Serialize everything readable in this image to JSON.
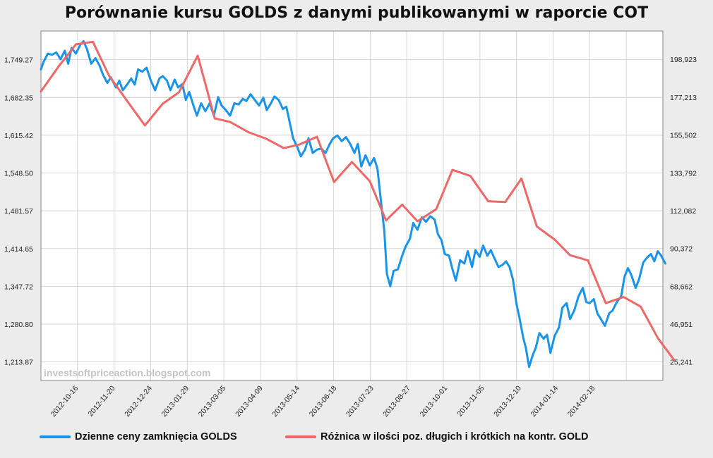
{
  "chart_data": {
    "type": "line",
    "title": "Porównanie kursu GOLDS z danymi publikowanymi w raporcie COT",
    "watermark": "investsoftpriceaction.blogspot.com",
    "x_labels": [
      "2012-10-16",
      "2012-11-20",
      "2012-12-24",
      "2013-01-29",
      "2013-03-05",
      "2013-04-09",
      "2013-05-14",
      "2013-06-18",
      "2013-07-23",
      "2013-08-27",
      "2013-10-01",
      "2013-11-05",
      "2013-12-10",
      "2014-01-14",
      "2014-02-18"
    ],
    "x_range": [
      0,
      73
    ],
    "y_left": {
      "ticks": [
        "1,213.87",
        "1,280.80",
        "1,347.72",
        "1,414.65",
        "1,481.57",
        "1,548.50",
        "1,615.42",
        "1,682.35",
        "1,749.27"
      ],
      "range": [
        1181,
        1800
      ]
    },
    "y_right": {
      "ticks": [
        "25,241",
        "46,951",
        "68,662",
        "90,372",
        "112,082",
        "133,792",
        "155,502",
        "177,213",
        "198,923"
      ],
      "range": [
        14600,
        215200
      ]
    },
    "grid": true,
    "series": [
      {
        "name": "Dzienne ceny zamknięcia GOLDS",
        "axis": "left",
        "color": "#1a94e8",
        "points": [
          [
            0,
            1732
          ],
          [
            0.3,
            1745
          ],
          [
            0.8,
            1760
          ],
          [
            1.3,
            1758
          ],
          [
            1.8,
            1762
          ],
          [
            2.3,
            1750
          ],
          [
            2.8,
            1765
          ],
          [
            3.2,
            1742
          ],
          [
            3.6,
            1770
          ],
          [
            4.1,
            1760
          ],
          [
            4.6,
            1775
          ],
          [
            5.0,
            1782
          ],
          [
            5.4,
            1768
          ],
          [
            5.9,
            1742
          ],
          [
            6.4,
            1752
          ],
          [
            6.9,
            1738
          ],
          [
            7.3,
            1722
          ],
          [
            7.8,
            1708
          ],
          [
            8.2,
            1718
          ],
          [
            8.8,
            1700
          ],
          [
            9.2,
            1712
          ],
          [
            9.6,
            1695
          ],
          [
            10.1,
            1705
          ],
          [
            10.6,
            1716
          ],
          [
            11.0,
            1705
          ],
          [
            11.4,
            1732
          ],
          [
            11.9,
            1728
          ],
          [
            12.4,
            1735
          ],
          [
            12.9,
            1712
          ],
          [
            13.4,
            1695
          ],
          [
            13.9,
            1716
          ],
          [
            14.3,
            1720
          ],
          [
            14.8,
            1712
          ],
          [
            15.2,
            1695
          ],
          [
            15.7,
            1714
          ],
          [
            16.1,
            1700
          ],
          [
            16.6,
            1706
          ],
          [
            17.0,
            1678
          ],
          [
            17.4,
            1692
          ],
          [
            17.9,
            1668
          ],
          [
            18.3,
            1650
          ],
          [
            18.8,
            1672
          ],
          [
            19.3,
            1658
          ],
          [
            19.8,
            1672
          ],
          [
            20.3,
            1650
          ],
          [
            20.8,
            1683
          ],
          [
            21.2,
            1668
          ],
          [
            21.7,
            1660
          ],
          [
            22.2,
            1650
          ],
          [
            22.7,
            1672
          ],
          [
            23.2,
            1670
          ],
          [
            23.7,
            1680
          ],
          [
            24.1,
            1676
          ],
          [
            24.6,
            1688
          ],
          [
            25.1,
            1678
          ],
          [
            25.6,
            1668
          ],
          [
            26.1,
            1682
          ],
          [
            26.5,
            1660
          ],
          [
            27.0,
            1672
          ],
          [
            27.4,
            1684
          ],
          [
            27.9,
            1678
          ],
          [
            28.4,
            1662
          ],
          [
            28.8,
            1666
          ],
          [
            29.2,
            1638
          ],
          [
            29.6,
            1610
          ],
          [
            30.1,
            1594
          ],
          [
            30.5,
            1578
          ],
          [
            31.0,
            1590
          ],
          [
            31.4,
            1610
          ],
          [
            31.9,
            1584
          ],
          [
            32.4,
            1590
          ],
          [
            32.9,
            1592
          ],
          [
            33.4,
            1584
          ],
          [
            33.9,
            1600
          ],
          [
            34.3,
            1610
          ],
          [
            34.8,
            1615
          ],
          [
            35.3,
            1605
          ],
          [
            35.8,
            1612
          ],
          [
            36.3,
            1600
          ],
          [
            36.8,
            1584
          ],
          [
            37.2,
            1600
          ],
          [
            37.6,
            1560
          ],
          [
            38.1,
            1580
          ],
          [
            38.6,
            1562
          ],
          [
            39.1,
            1575
          ],
          [
            39.5,
            1556
          ],
          [
            39.9,
            1500
          ],
          [
            40.3,
            1446
          ],
          [
            40.6,
            1370
          ],
          [
            41.0,
            1348
          ],
          [
            41.4,
            1375
          ],
          [
            41.9,
            1378
          ],
          [
            42.4,
            1402
          ],
          [
            42.8,
            1418
          ],
          [
            43.3,
            1432
          ],
          [
            43.7,
            1460
          ],
          [
            44.2,
            1448
          ],
          [
            44.7,
            1470
          ],
          [
            45.2,
            1462
          ],
          [
            45.7,
            1472
          ],
          [
            46.2,
            1466
          ],
          [
            46.6,
            1440
          ],
          [
            47.0,
            1430
          ],
          [
            47.4,
            1405
          ],
          [
            47.9,
            1402
          ],
          [
            48.3,
            1378
          ],
          [
            48.7,
            1358
          ],
          [
            49.2,
            1394
          ],
          [
            49.7,
            1388
          ],
          [
            50.1,
            1410
          ],
          [
            50.6,
            1382
          ],
          [
            51.0,
            1412
          ],
          [
            51.5,
            1400
          ],
          [
            51.9,
            1420
          ],
          [
            52.4,
            1402
          ],
          [
            52.8,
            1412
          ],
          [
            53.3,
            1395
          ],
          [
            53.7,
            1382
          ],
          [
            54.2,
            1386
          ],
          [
            54.6,
            1392
          ],
          [
            55.0,
            1382
          ],
          [
            55.4,
            1360
          ],
          [
            55.8,
            1318
          ],
          [
            56.2,
            1290
          ],
          [
            56.6,
            1257
          ],
          [
            56.9,
            1240
          ],
          [
            57.3,
            1205
          ],
          [
            57.7,
            1225
          ],
          [
            58.1,
            1240
          ],
          [
            58.5,
            1265
          ],
          [
            59.0,
            1255
          ],
          [
            59.4,
            1262
          ],
          [
            59.8,
            1230
          ],
          [
            60.3,
            1260
          ],
          [
            60.8,
            1275
          ],
          [
            61.2,
            1310
          ],
          [
            61.7,
            1318
          ],
          [
            62.1,
            1290
          ],
          [
            62.6,
            1305
          ],
          [
            63.1,
            1330
          ],
          [
            63.6,
            1345
          ],
          [
            64.0,
            1320
          ],
          [
            64.4,
            1318
          ],
          [
            64.9,
            1325
          ],
          [
            65.3,
            1300
          ],
          [
            65.8,
            1288
          ],
          [
            66.2,
            1278
          ],
          [
            66.7,
            1300
          ],
          [
            67.1,
            1305
          ],
          [
            67.6,
            1320
          ],
          [
            68.1,
            1330
          ],
          [
            68.5,
            1365
          ],
          [
            68.9,
            1380
          ],
          [
            69.3,
            1368
          ],
          [
            69.8,
            1345
          ],
          [
            70.2,
            1360
          ],
          [
            70.7,
            1390
          ],
          [
            71.1,
            1398
          ],
          [
            71.6,
            1405
          ],
          [
            72.0,
            1392
          ],
          [
            72.4,
            1410
          ],
          [
            72.8,
            1402
          ],
          [
            73.3,
            1388
          ]
        ]
      },
      {
        "name": "Różnica w ilości poz. długich i krótkich na kontr. GOLD",
        "axis": "right",
        "color": "#f06767",
        "points": [
          [
            0,
            180500
          ],
          [
            2.1,
            195000
          ],
          [
            4.1,
            207500
          ],
          [
            6.1,
            209000
          ],
          [
            8.0,
            189500
          ],
          [
            10.2,
            174500
          ],
          [
            12.2,
            161000
          ],
          [
            14.3,
            173500
          ],
          [
            16.2,
            180000
          ],
          [
            18.4,
            201000
          ],
          [
            20.4,
            165000
          ],
          [
            22.2,
            163000
          ],
          [
            24.4,
            157000
          ],
          [
            26.4,
            153500
          ],
          [
            28.5,
            148000
          ],
          [
            30.3,
            150000
          ],
          [
            32.4,
            154500
          ],
          [
            34.4,
            128500
          ],
          [
            36.5,
            140000
          ],
          [
            38.6,
            129000
          ],
          [
            40.5,
            106500
          ],
          [
            42.4,
            115500
          ],
          [
            44.2,
            106000
          ],
          [
            46.4,
            113000
          ],
          [
            48.3,
            135500
          ],
          [
            50.4,
            132000
          ],
          [
            52.5,
            117500
          ],
          [
            54.5,
            117000
          ],
          [
            56.4,
            130500
          ],
          [
            58.2,
            103000
          ],
          [
            60.3,
            95500
          ],
          [
            62.1,
            86500
          ],
          [
            64.2,
            83500
          ],
          [
            66.3,
            59000
          ],
          [
            68.4,
            62500
          ],
          [
            70.4,
            57000
          ],
          [
            72.4,
            39000
          ],
          [
            74.3,
            26500
          ]
        ]
      }
    ],
    "legend": {
      "position": "bottom",
      "entries": [
        "Dzienne ceny zamknięcia GOLDS",
        "Różnica w ilości poz. długich i krótkich na kontr. GOLD"
      ]
    }
  }
}
